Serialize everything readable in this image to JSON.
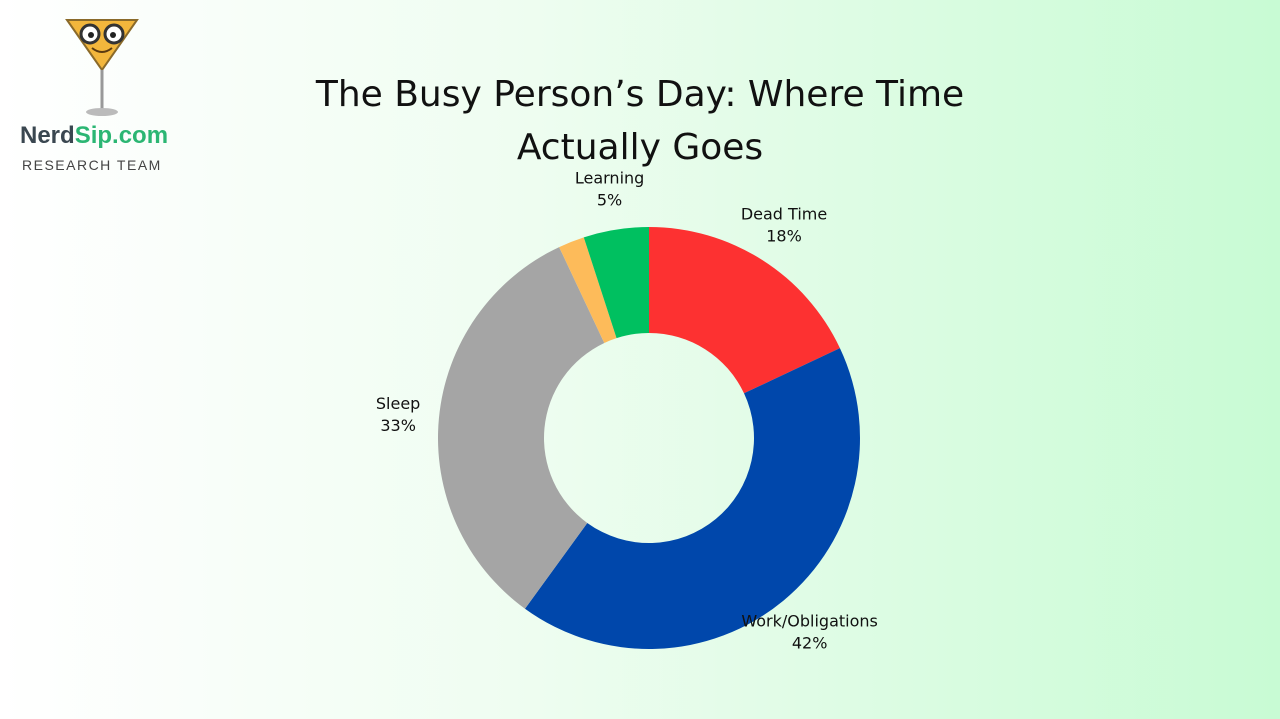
{
  "logo": {
    "brand_dark": "Nerd",
    "brand_green": "Sip.com",
    "subtitle": "RESEARCH TEAM"
  },
  "chart_data": {
    "type": "donut",
    "title": "The Busy Person’s Day: Where Time Actually Goes",
    "categories": [
      "Dead Time",
      "Work/Obligations",
      "Sleep",
      null,
      "Learning"
    ],
    "values": [
      18,
      42,
      33,
      2,
      5
    ],
    "value_labels": [
      "18%",
      "42%",
      "33%",
      null,
      "5%"
    ],
    "colors": [
      "#fd3131",
      "#0047ab",
      "#a5a5a5",
      "#fdbb5a",
      "#00c060"
    ]
  }
}
